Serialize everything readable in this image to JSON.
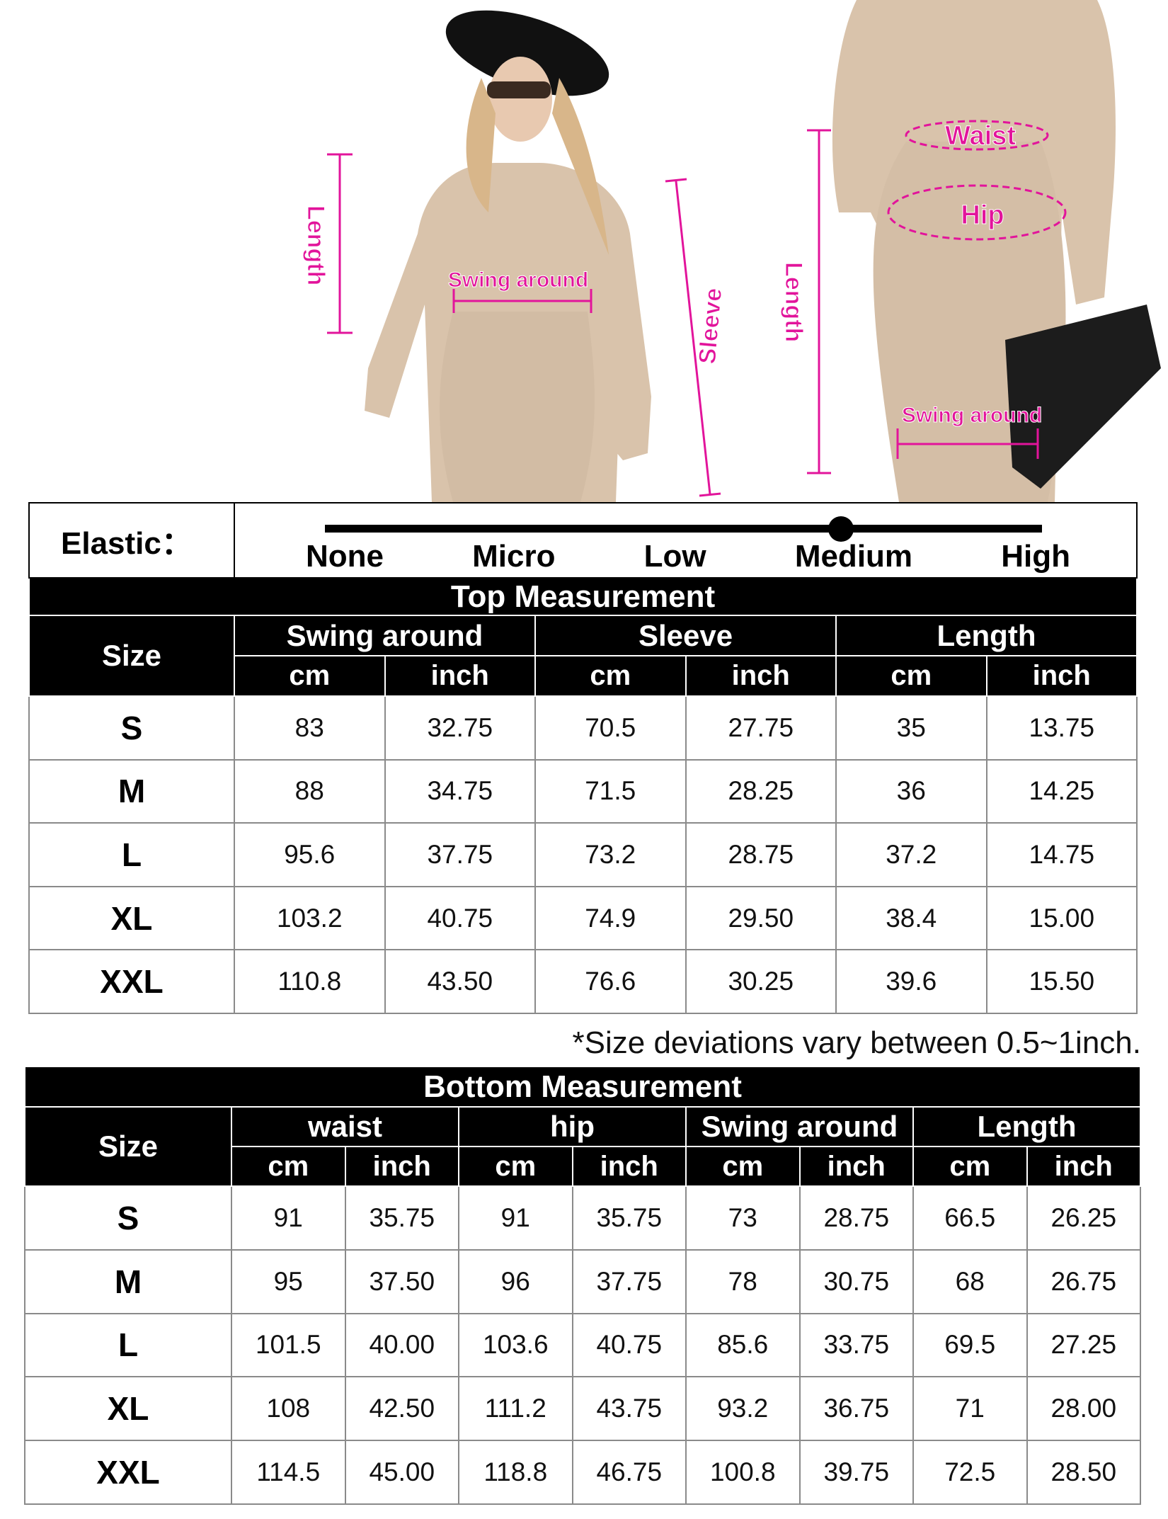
{
  "annotations": {
    "color": "#e2149b",
    "left_length": "Length",
    "top_swing": "Swing around",
    "sleeve": "Sleeve",
    "right_length": "Length",
    "waist": "Waist",
    "hip": "Hip",
    "bottom_swing": "Swing around"
  },
  "elastic": {
    "label": "Elastic：",
    "levels": [
      "None",
      "Micro",
      "Low",
      "Medium",
      "High"
    ],
    "selected": "Medium",
    "level_fraction": 0.72
  },
  "top": {
    "title": "Top Measurement",
    "size_header": "Size",
    "groups": [
      "Swing around",
      "Sleeve",
      "Length"
    ],
    "units": [
      "cm",
      "inch"
    ],
    "rows": [
      {
        "size": "S",
        "values": [
          "83",
          "32.75",
          "70.5",
          "27.75",
          "35",
          "13.75"
        ]
      },
      {
        "size": "M",
        "values": [
          "88",
          "34.75",
          "71.5",
          "28.25",
          "36",
          "14.25"
        ]
      },
      {
        "size": "L",
        "values": [
          "95.6",
          "37.75",
          "73.2",
          "28.75",
          "37.2",
          "14.75"
        ]
      },
      {
        "size": "XL",
        "values": [
          "103.2",
          "40.75",
          "74.9",
          "29.50",
          "38.4",
          "15.00"
        ]
      },
      {
        "size": "XXL",
        "values": [
          "110.8",
          "43.50",
          "76.6",
          "30.25",
          "39.6",
          "15.50"
        ]
      }
    ]
  },
  "note": "*Size deviations vary between 0.5~1inch.",
  "bottom": {
    "title": "Bottom Measurement",
    "size_header": "Size",
    "groups": [
      "waist",
      "hip",
      "Swing around",
      "Length"
    ],
    "units": [
      "cm",
      "inch"
    ],
    "rows": [
      {
        "size": "S",
        "values": [
          "91",
          "35.75",
          "91",
          "35.75",
          "73",
          "28.75",
          "66.5",
          "26.25"
        ]
      },
      {
        "size": "M",
        "values": [
          "95",
          "37.50",
          "96",
          "37.75",
          "78",
          "30.75",
          "68",
          "26.75"
        ]
      },
      {
        "size": "L",
        "values": [
          "101.5",
          "40.00",
          "103.6",
          "40.75",
          "85.6",
          "33.75",
          "69.5",
          "27.25"
        ]
      },
      {
        "size": "XL",
        "values": [
          "108",
          "42.50",
          "111.2",
          "43.75",
          "93.2",
          "36.75",
          "71",
          "28.00"
        ]
      },
      {
        "size": "XXL",
        "values": [
          "114.5",
          "45.00",
          "118.8",
          "46.75",
          "100.8",
          "39.75",
          "72.5",
          "28.50"
        ]
      }
    ]
  }
}
